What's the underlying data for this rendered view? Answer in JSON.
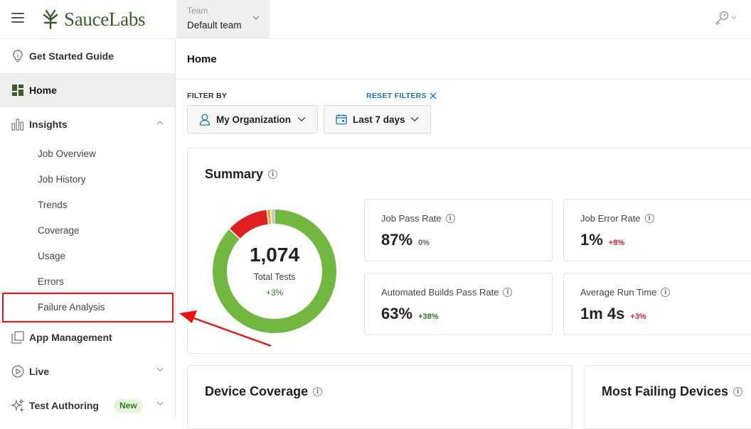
{
  "header": {
    "brand": "SauceLabs",
    "team": {
      "label": "Team",
      "value": "Default team"
    }
  },
  "sidebar": {
    "items": [
      {
        "label": "Get Started Guide",
        "icon": "lightbulb-icon"
      },
      {
        "label": "Home",
        "icon": "dashboard-icon",
        "active": true
      },
      {
        "label": "Insights",
        "icon": "bar-chart-icon",
        "expanded": true
      },
      {
        "label": "App Management",
        "icon": "copy-icon"
      },
      {
        "label": "Live",
        "icon": "play-circle-icon"
      },
      {
        "label": "Test Authoring",
        "icon": "sparkle-icon",
        "badge": "New"
      }
    ],
    "insights_sub": [
      "Job Overview",
      "Job History",
      "Trends",
      "Coverage",
      "Usage",
      "Errors",
      "Failure Analysis"
    ]
  },
  "main": {
    "title": "Home",
    "filters": {
      "label": "FILTER BY",
      "reset": "RESET FILTERS",
      "organization": "My Organization",
      "date_range": "Last 7 days"
    },
    "summary": {
      "title": "Summary",
      "total": "1,074",
      "total_label": "Total Tests",
      "total_delta": "+3%",
      "donut": {
        "passed": 87,
        "failed": 11,
        "error": 1,
        "other": 1
      },
      "stats": [
        {
          "label": "Job Pass Rate",
          "value": "87%",
          "delta": "0%",
          "tone": "neutral"
        },
        {
          "label": "Job Error Rate",
          "value": "1%",
          "delta": "+8%",
          "tone": "red"
        },
        {
          "label": "Automated Builds Pass Rate",
          "value": "63%",
          "delta": "+38%",
          "tone": "green"
        },
        {
          "label": "Average Run Time",
          "value": "1m 4s",
          "delta": "+3%",
          "tone": "red"
        }
      ]
    },
    "device_coverage": {
      "title": "Device Coverage"
    },
    "most_failing": {
      "title": "Most Failing Devices"
    }
  },
  "colors": {
    "passed": "#72b740",
    "failed": "#e02020",
    "error": "#f5a623",
    "brand": "#3d5a2a",
    "link": "#1a73c8",
    "annotation": "#ee1111"
  }
}
